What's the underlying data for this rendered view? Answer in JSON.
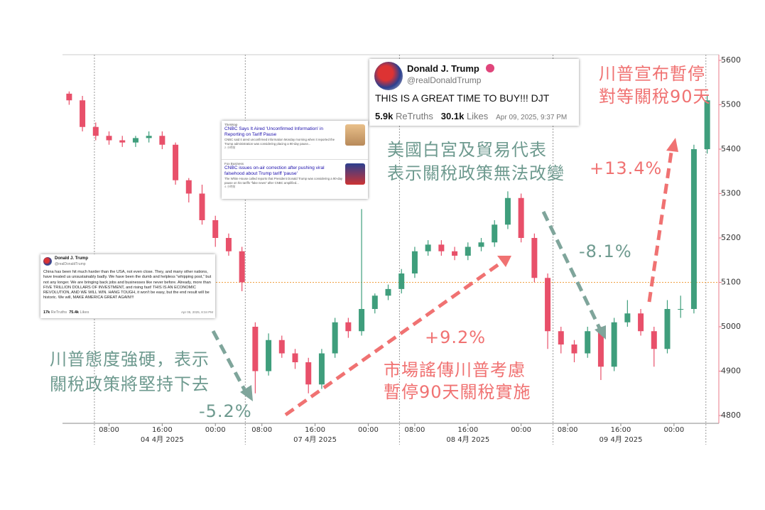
{
  "chart_data": {
    "type": "candlestick",
    "x": [
      1,
      3,
      5,
      7,
      9,
      11,
      13,
      15,
      17,
      19,
      21,
      23,
      25,
      27,
      29,
      31,
      33,
      35,
      37,
      39,
      41,
      43,
      45,
      47,
      49,
      51,
      53,
      55,
      57,
      59,
      61,
      63,
      65,
      67,
      69,
      71,
      73,
      75,
      77,
      79,
      81,
      83,
      85,
      87,
      89,
      91,
      93,
      95,
      97
    ],
    "opens": [
      5525,
      5510,
      5450,
      5430,
      5420,
      5415,
      5425,
      5430,
      5410,
      5330,
      5300,
      5240,
      5200,
      5170,
      5000,
      4900,
      4970,
      4940,
      4920,
      4870,
      4940,
      5010,
      4990,
      5040,
      5070,
      5085,
      5120,
      5170,
      5185,
      5170,
      5160,
      5180,
      5190,
      5230,
      5290,
      5200,
      5110,
      4990,
      4960,
      4940,
      4990,
      4910,
      5010,
      5030,
      4990,
      4950,
      5040,
      5040,
      5400
    ],
    "highs": [
      5530,
      5520,
      5460,
      5440,
      5430,
      5430,
      5440,
      5440,
      5415,
      5335,
      5320,
      5250,
      5210,
      5180,
      5010,
      4985,
      4980,
      4950,
      4930,
      4950,
      5020,
      5020,
      5265,
      5075,
      5095,
      5130,
      5180,
      5195,
      5195,
      5180,
      5190,
      5200,
      5240,
      5305,
      5300,
      5210,
      5120,
      5000,
      4970,
      5000,
      5000,
      5020,
      5060,
      5040,
      5000,
      5060,
      5070,
      5410,
      5520
    ],
    "lows": [
      5500,
      5440,
      5420,
      5410,
      5405,
      5405,
      5415,
      5400,
      5320,
      5280,
      5230,
      5180,
      5160,
      5080,
      4850,
      4890,
      4930,
      4905,
      4850,
      4860,
      4930,
      4975,
      4980,
      5030,
      5060,
      5075,
      5110,
      5160,
      5160,
      5150,
      5150,
      5170,
      5180,
      5220,
      5190,
      5100,
      4950,
      4940,
      4920,
      4930,
      4880,
      4900,
      5000,
      4980,
      4910,
      4940,
      5020,
      5030,
      5390
    ],
    "closes": [
      5510,
      5450,
      5430,
      5420,
      5415,
      5425,
      5430,
      5410,
      5330,
      5300,
      5240,
      5200,
      5170,
      5100,
      4900,
      4970,
      4940,
      4920,
      4870,
      4940,
      5010,
      4990,
      5040,
      5070,
      5085,
      5120,
      5170,
      5185,
      5170,
      5160,
      5180,
      5190,
      5230,
      5290,
      5200,
      5110,
      4990,
      4960,
      4940,
      4990,
      4910,
      5010,
      5030,
      4990,
      4950,
      5040,
      5040,
      5400,
      5510
    ],
    "up_color": "#3f9e7c",
    "down_color": "#e8506a",
    "xlim": [
      0,
      98
    ],
    "xticks": [
      {
        "value": 7,
        "label": "08:00"
      },
      {
        "value": 15,
        "label": "16:00"
      },
      {
        "value": 23,
        "label": "00:00"
      },
      {
        "value": 30,
        "label": "08:00"
      },
      {
        "value": 38,
        "label": "16:00"
      },
      {
        "value": 46,
        "label": "00:00"
      },
      {
        "value": 53,
        "label": "08:00"
      },
      {
        "value": 61,
        "label": "16:00"
      },
      {
        "value": 69,
        "label": "00:00"
      },
      {
        "value": 76,
        "label": "08:00"
      },
      {
        "value": 84,
        "label": "16:00"
      },
      {
        "value": 92,
        "label": "00:00"
      }
    ],
    "date_labels": [
      {
        "value": 15,
        "label": "04 4月 2025"
      },
      {
        "value": 38,
        "label": "07 4月 2025"
      },
      {
        "value": 61,
        "label": "08 4月 2025"
      },
      {
        "value": 84,
        "label": "09 4月 2025"
      }
    ],
    "session_lines": [
      4.8,
      27.5,
      50.7,
      73.8,
      96.8
    ],
    "ylim": [
      4800,
      5600
    ],
    "yticks": [
      4800,
      4900,
      5000,
      5100,
      5200,
      5300,
      5400,
      5500,
      5600
    ],
    "reference_line": 5100,
    "annotations": [
      {
        "text": "川普宣布暫停",
        "color": "#f07272"
      },
      {
        "text": "對等關稅90天",
        "color": "#f07272"
      },
      {
        "text": "美國白宮及貿易代表",
        "color": "#6e9a8f"
      },
      {
        "text": "表示關稅政策無法改變",
        "color": "#6e9a8f"
      },
      {
        "text": "+13.4%",
        "color": "#f07272"
      },
      {
        "text": "-8.1%",
        "color": "#6e9a8f"
      },
      {
        "text": "+9.2%",
        "color": "#f07272"
      },
      {
        "text": "市場謠傳川普考慮",
        "color": "#f07272"
      },
      {
        "text": "暫停90天關稅實施",
        "color": "#f07272"
      },
      {
        "text": "川普態度強硬，表示",
        "color": "#6e9a8f"
      },
      {
        "text": "關稅政策將堅持下去",
        "color": "#6e9a8f"
      },
      {
        "text": "-5.2%",
        "color": "#6e9a8f"
      }
    ]
  },
  "overlays": {
    "main_tweet": {
      "name": "Donald J. Trump",
      "handle": "@realDonaldTrump",
      "text": "THIS IS A GREAT TIME TO BUY!!! DJT",
      "retruths": "5.9k",
      "retruths_label": "ReTruths",
      "likes": "30.1k",
      "likes_label": "Likes",
      "date": "Apr 09, 2025, 9:37 PM"
    },
    "small_tweet": {
      "name": "Donald J. Trump",
      "handle": "@realDonaldTrump",
      "text": "China has been hit much harder than the USA, not even close. They, and many other nations, have treated us unsustainably badly. We have been the dumb and helpless “whipping post,” but not any longer. We are bringing back jobs and businesses like never before. Already, more than FIVE TRILLION DOLLARS OF INVESTMENT, and rising fast! THIS IS AN ECONOMIC REVOLUTION, AND WE WILL WIN. HANG TOUGH, it won't be easy, but the end result will be historic. We will, MAKE AMERICA GREAT AGAIN!!!",
      "retruths": "17k",
      "retruths_label": "ReTruths",
      "likes": "75.4k",
      "likes_label": "Likes",
      "date": "Apr 05, 2025, 8:34 PM"
    },
    "news_card": [
      {
        "source": "TheWrap",
        "headline": "CNBC Says It Aired 'Unconfirmed Information' in Reporting on Tariff Pause",
        "snippet": "CNBC said it aired unconfirmed information Monday morning when it reported the Trump administration was considering placing a 90-day pause...",
        "time": "2 小時前"
      },
      {
        "source": "Fox Business",
        "headline": "CNBC issues on-air correction after pushing viral falsehood about Trump tariff 'pause'",
        "snippet": "The White House called reports that President Donald Trump was considering a 90-day pause on his tariffs \"fake news\" after CNBC amplified...",
        "time": "4 小時前"
      }
    ]
  }
}
